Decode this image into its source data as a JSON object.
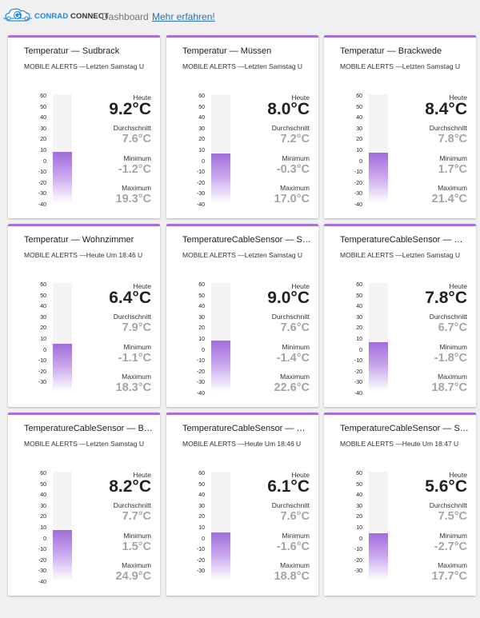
{
  "header": {
    "brand_conrad": "CONRAD",
    "brand_connect": "CONNECT",
    "dashboard_label": "Dashboard",
    "more_link": "Mehr erfahren!"
  },
  "colors": {
    "accent": "#a371d8",
    "link": "#2c6fc4",
    "brand": "#1e88e5"
  },
  "labels": {
    "today": "Heute",
    "avg": "Durchschnitt",
    "min": "Minimum",
    "max": "Maximum"
  },
  "cards": [
    {
      "title": "Temperatur — Sudbrack",
      "subtitle": "MOBILE ALERTS —Letzten Samstag U",
      "today": "9.2°C",
      "avg": "7.6°C",
      "min": "-1.2°C",
      "max": "19.3°C",
      "value": 9.2,
      "ticks": [
        "60",
        "50",
        "40",
        "30",
        "20",
        "10",
        "0",
        "-10",
        "-20",
        "-30",
        "-40"
      ]
    },
    {
      "title": "Temperatur — Müssen",
      "subtitle": "MOBILE ALERTS —Letzten Samstag U",
      "today": "8.0°C",
      "avg": "7.2°C",
      "min": "-0.3°C",
      "max": "17.0°C",
      "value": 8.0,
      "ticks": [
        "60",
        "50",
        "40",
        "30",
        "20",
        "10",
        "0",
        "-10",
        "-20",
        "-30",
        "-40"
      ]
    },
    {
      "title": "Temperatur — Brackwede",
      "subtitle": "MOBILE ALERTS —Letzten Samstag U",
      "today": "8.4°C",
      "avg": "7.8°C",
      "min": "1.7°C",
      "max": "21.4°C",
      "value": 8.4,
      "ticks": [
        "60",
        "50",
        "40",
        "30",
        "20",
        "10",
        "0",
        "-10",
        "-20",
        "-30",
        "-40"
      ]
    },
    {
      "title": "Temperatur — Wohnzimmer",
      "subtitle": "MOBILE ALERTS —Heute Um 18:46 U",
      "today": "6.4°C",
      "avg": "7.9°C",
      "min": "-1.1°C",
      "max": "18.3°C",
      "value": 6.4,
      "ticks": [
        "60",
        "50",
        "40",
        "30",
        "20",
        "10",
        "0",
        "-10",
        "-20",
        "-30"
      ]
    },
    {
      "title": "TemperatureCableSensor — Sudbrack",
      "subtitle": "MOBILE ALERTS —Letzten Samstag U",
      "today": "9.0°C",
      "avg": "7.6°C",
      "min": "-1.4°C",
      "max": "22.6°C",
      "value": 9.0,
      "ticks": [
        "60",
        "50",
        "40",
        "30",
        "20",
        "10",
        "0",
        "-10",
        "-20",
        "-30",
        "-40"
      ]
    },
    {
      "title": "TemperatureCableSensor — Müssen",
      "subtitle": "MOBILE ALERTS —Letzten Samstag U",
      "today": "7.8°C",
      "avg": "6.7°C",
      "min": "-1.8°C",
      "max": "18.7°C",
      "value": 7.8,
      "ticks": [
        "60",
        "50",
        "40",
        "30",
        "20",
        "10",
        "0",
        "-10",
        "-20",
        "-30",
        "-40"
      ]
    },
    {
      "title": "TemperatureCableSensor — Brackwede",
      "subtitle": "MOBILE ALERTS —Letzten Samstag U",
      "today": "8.2°C",
      "avg": "7.7°C",
      "min": "1.5°C",
      "max": "24.9°C",
      "value": 8.2,
      "ticks": [
        "60",
        "50",
        "40",
        "30",
        "20",
        "10",
        "0",
        "-10",
        "-20",
        "-30",
        "-40"
      ]
    },
    {
      "title": "TemperatureCableSensor — Wohnzimmer",
      "subtitle": "MOBILE ALERTS —Heute Um 18:46 U",
      "today": "6.1°C",
      "avg": "7.6°C",
      "min": "-1.6°C",
      "max": "18.8°C",
      "value": 6.1,
      "ticks": [
        "60",
        "50",
        "40",
        "30",
        "20",
        "10",
        "0",
        "-10",
        "-20",
        "-30"
      ]
    },
    {
      "title": "TemperatureCableSensor — Schlafzimmer",
      "subtitle": "MOBILE ALERTS —Heute Um 18:47 U",
      "today": "5.6°C",
      "avg": "7.5°C",
      "min": "-2.7°C",
      "max": "17.7°C",
      "value": 5.6,
      "ticks": [
        "60",
        "50",
        "40",
        "30",
        "20",
        "10",
        "0",
        "-10",
        "-20",
        "-30"
      ]
    }
  ]
}
